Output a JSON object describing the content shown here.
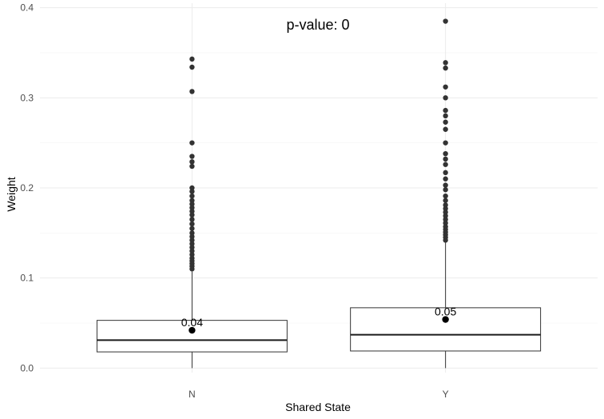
{
  "chart_data": {
    "type": "boxplot",
    "title": "",
    "xlabel": "Shared State",
    "ylabel": "Weight",
    "annotation": "p-value: 0",
    "ylim": [
      -0.005,
      0.405
    ],
    "yticks": [
      0.0,
      0.1,
      0.2,
      0.3,
      0.4
    ],
    "ytick_labels": [
      "0.0",
      "0.1",
      "0.2",
      "0.3",
      "0.4"
    ],
    "grid": true,
    "legend": "none",
    "categories": [
      "N",
      "Y"
    ],
    "boxes": [
      {
        "category": "N",
        "lower_whisker": 0.0,
        "q1": 0.018,
        "median": 0.031,
        "q3": 0.053,
        "upper_whisker": 0.107,
        "mean": 0.042,
        "mean_label": "0.04",
        "outliers": [
          0.343,
          0.334,
          0.307,
          0.25,
          0.235,
          0.229,
          0.224,
          0.2,
          0.196,
          0.191,
          0.186,
          0.182,
          0.178,
          0.174,
          0.17,
          0.165,
          0.16,
          0.155,
          0.15,
          0.146,
          0.142,
          0.138,
          0.134,
          0.13,
          0.126,
          0.122,
          0.119,
          0.116,
          0.113,
          0.11
        ]
      },
      {
        "category": "Y",
        "lower_whisker": 0.0,
        "q1": 0.019,
        "median": 0.037,
        "q3": 0.067,
        "upper_whisker": 0.14,
        "mean": 0.054,
        "mean_label": "0.05",
        "outliers": [
          0.385,
          0.339,
          0.333,
          0.312,
          0.3,
          0.286,
          0.28,
          0.273,
          0.265,
          0.25,
          0.238,
          0.232,
          0.226,
          0.217,
          0.21,
          0.203,
          0.198,
          0.191,
          0.186,
          0.181,
          0.177,
          0.173,
          0.169,
          0.165,
          0.161,
          0.157,
          0.154,
          0.151,
          0.148,
          0.145,
          0.142
        ]
      }
    ],
    "colors": {
      "grid_major": "#ebebeb",
      "grid_minor": "#f4f4f4",
      "box_line": "#333333",
      "median_line": "#1a1a1a",
      "outlier": "#333333",
      "mean_point": "#000000"
    }
  }
}
